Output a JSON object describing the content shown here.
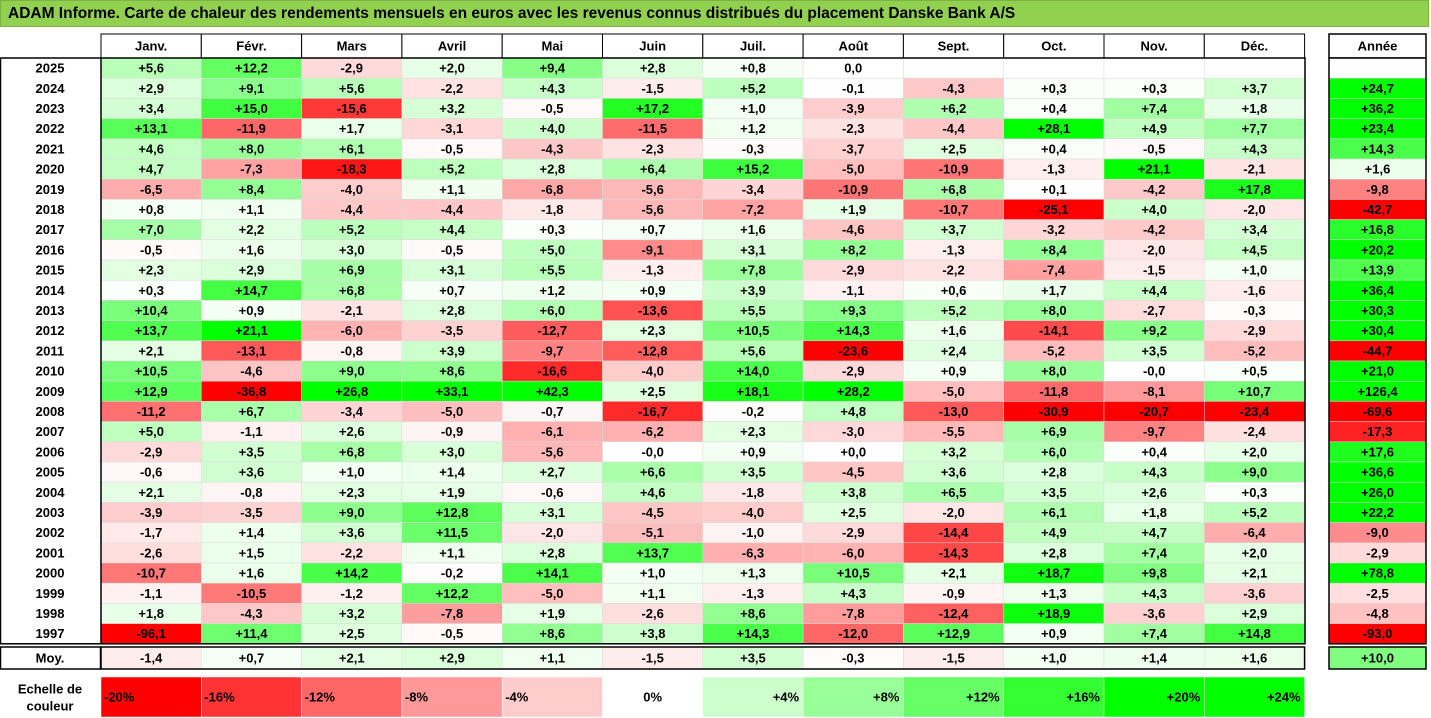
{
  "title": "ADAM Informe. Carte de chaleur des rendements mensuels en euros avec les revenus connus distribués du placement Danske Bank A/S",
  "chart_data": {
    "type": "heatmap",
    "title": "ADAM Informe. Carte de chaleur des rendements mensuels en euros avec les revenus connus distribués du placement Danske Bank A/S",
    "months": [
      "Janv.",
      "Févr.",
      "Mars",
      "Avril",
      "Mai",
      "Juin",
      "Juil.",
      "Août",
      "Sept.",
      "Oct.",
      "Nov.",
      "Déc."
    ],
    "year_header": "Année",
    "rows": [
      {
        "year": "2025",
        "values": [
          "+5,6",
          "+12,2",
          "-2,9",
          "+2,0",
          "+9,4",
          "+2,8",
          "+0,8",
          "0,0",
          "",
          "",
          "",
          ""
        ],
        "annual": ""
      },
      {
        "year": "2024",
        "values": [
          "+2,9",
          "+9,1",
          "+5,6",
          "-2,2",
          "+4,3",
          "-1,5",
          "+5,2",
          "-0,1",
          "-4,3",
          "+0,3",
          "+0,3",
          "+3,7"
        ],
        "annual": "+24,7"
      },
      {
        "year": "2023",
        "values": [
          "+3,4",
          "+15,0",
          "-15,6",
          "+3,2",
          "-0,5",
          "+17,2",
          "+1,0",
          "-3,9",
          "+6,2",
          "+0,4",
          "+7,4",
          "+1,8"
        ],
        "annual": "+36,2"
      },
      {
        "year": "2022",
        "values": [
          "+13,1",
          "-11,9",
          "+1,7",
          "-3,1",
          "+4,0",
          "-11,5",
          "+1,2",
          "-2,3",
          "-4,4",
          "+28,1",
          "+4,9",
          "+7,7"
        ],
        "annual": "+23,4"
      },
      {
        "year": "2021",
        "values": [
          "+4,6",
          "+8,0",
          "+6,1",
          "-0,5",
          "-4,3",
          "-2,3",
          "-0,3",
          "-3,7",
          "+2,5",
          "+0,4",
          "-0,5",
          "+4,3"
        ],
        "annual": "+14,3"
      },
      {
        "year": "2020",
        "values": [
          "+4,7",
          "-7,3",
          "-18,3",
          "+5,2",
          "+2,8",
          "+6,4",
          "+15,2",
          "-5,0",
          "-10,9",
          "-1,3",
          "+21,1",
          "-2,1"
        ],
        "annual": "+1,6"
      },
      {
        "year": "2019",
        "values": [
          "-6,5",
          "+8,4",
          "-4,0",
          "+1,1",
          "-6,8",
          "-5,6",
          "-3,4",
          "-10,9",
          "+6,8",
          "+0,1",
          "-4,2",
          "+17,8"
        ],
        "annual": "-9,8"
      },
      {
        "year": "2018",
        "values": [
          "+0,8",
          "+1,1",
          "-4,4",
          "-4,4",
          "-1,8",
          "-5,6",
          "-7,2",
          "+1,9",
          "-10,7",
          "-25,1",
          "+4,0",
          "-2,0"
        ],
        "annual": "-42,7"
      },
      {
        "year": "2017",
        "values": [
          "+7,0",
          "+2,2",
          "+5,2",
          "+4,4",
          "+0,3",
          "+0,7",
          "+1,6",
          "-4,6",
          "+3,7",
          "-3,2",
          "-4,2",
          "+3,4"
        ],
        "annual": "+16,8"
      },
      {
        "year": "2016",
        "values": [
          "-0,5",
          "+1,6",
          "+3,0",
          "-0,5",
          "+5,0",
          "-9,1",
          "+3,1",
          "+8,2",
          "-1,3",
          "+8,4",
          "-2,0",
          "+4,5"
        ],
        "annual": "+20,2"
      },
      {
        "year": "2015",
        "values": [
          "+2,3",
          "+2,9",
          "+6,9",
          "+3,1",
          "+5,5",
          "-1,3",
          "+7,8",
          "-2,9",
          "-2,2",
          "-7,4",
          "-1,5",
          "+1,0"
        ],
        "annual": "+13,9"
      },
      {
        "year": "2014",
        "values": [
          "+0,3",
          "+14,7",
          "+6,8",
          "+0,7",
          "+1,2",
          "+0,9",
          "+3,9",
          "-1,1",
          "+0,6",
          "+1,7",
          "+4,4",
          "-1,6"
        ],
        "annual": "+36,4"
      },
      {
        "year": "2013",
        "values": [
          "+10,4",
          "+0,9",
          "-2,1",
          "+2,8",
          "+6,0",
          "-13,6",
          "+5,5",
          "+9,3",
          "+5,2",
          "+8,0",
          "-2,7",
          "-0,3"
        ],
        "annual": "+30,3"
      },
      {
        "year": "2012",
        "values": [
          "+13,7",
          "+21,1",
          "-6,0",
          "-3,5",
          "-12,7",
          "+2,3",
          "+10,5",
          "+14,3",
          "+1,6",
          "-14,1",
          "+9,2",
          "-2,9"
        ],
        "annual": "+30,4"
      },
      {
        "year": "2011",
        "values": [
          "+2,1",
          "-13,1",
          "-0,8",
          "+3,9",
          "-9,7",
          "-12,8",
          "+5,6",
          "-23,6",
          "+2,4",
          "-5,2",
          "+3,5",
          "-5,2"
        ],
        "annual": "-44,7"
      },
      {
        "year": "2010",
        "values": [
          "+10,5",
          "-4,6",
          "+9,0",
          "+8,6",
          "-16,6",
          "-4,0",
          "+14,0",
          "-2,9",
          "+0,9",
          "+8,0",
          "-0,0",
          "+0,5"
        ],
        "annual": "+21,0"
      },
      {
        "year": "2009",
        "values": [
          "+12,9",
          "-36,8",
          "+26,8",
          "+33,1",
          "+42,3",
          "+2,5",
          "+18,1",
          "+28,2",
          "-5,0",
          "-11,8",
          "-8,1",
          "+10,7"
        ],
        "annual": "+126,4"
      },
      {
        "year": "2008",
        "values": [
          "-11,2",
          "+6,7",
          "-3,4",
          "-5,0",
          "-0,7",
          "-16,7",
          "-0,2",
          "+4,8",
          "-13,0",
          "-30,9",
          "-20,7",
          "-23,4"
        ],
        "annual": "-69,6"
      },
      {
        "year": "2007",
        "values": [
          "+5,0",
          "-1,1",
          "+2,6",
          "-0,9",
          "-6,1",
          "-6,2",
          "+2,3",
          "-3,0",
          "-5,5",
          "+6,9",
          "-9,7",
          "-2,4"
        ],
        "annual": "-17,3"
      },
      {
        "year": "2006",
        "values": [
          "-2,9",
          "+3,5",
          "+6,8",
          "+3,0",
          "-5,6",
          "-0,0",
          "+0,9",
          "+0,0",
          "+3,2",
          "+6,0",
          "+0,4",
          "+2,0"
        ],
        "annual": "+17,6"
      },
      {
        "year": "2005",
        "values": [
          "-0,6",
          "+3,6",
          "+1,0",
          "+1,4",
          "+2,7",
          "+6,6",
          "+3,5",
          "-4,5",
          "+3,6",
          "+2,8",
          "+4,3",
          "+9,0"
        ],
        "annual": "+36,6"
      },
      {
        "year": "2004",
        "values": [
          "+2,1",
          "-0,8",
          "+2,3",
          "+1,9",
          "-0,6",
          "+4,6",
          "-1,8",
          "+3,8",
          "+6,5",
          "+3,5",
          "+2,6",
          "+0,3"
        ],
        "annual": "+26,0"
      },
      {
        "year": "2003",
        "values": [
          "-3,9",
          "-3,5",
          "+9,0",
          "+12,8",
          "+3,1",
          "-4,5",
          "-4,0",
          "+2,5",
          "-2,0",
          "+6,1",
          "+1,8",
          "+5,2"
        ],
        "annual": "+22,2"
      },
      {
        "year": "2002",
        "values": [
          "-1,7",
          "+1,4",
          "+3,6",
          "+11,5",
          "-2,0",
          "-5,1",
          "-1,0",
          "-2,9",
          "-14,4",
          "+4,9",
          "+4,7",
          "-6,4"
        ],
        "annual": "-9,0"
      },
      {
        "year": "2001",
        "values": [
          "-2,6",
          "+1,5",
          "-2,2",
          "+1,1",
          "+2,8",
          "+13,7",
          "-6,3",
          "-6,0",
          "-14,3",
          "+2,8",
          "+7,4",
          "+2,0"
        ],
        "annual": "-2,9"
      },
      {
        "year": "2000",
        "values": [
          "-10,7",
          "+1,6",
          "+14,2",
          "-0,2",
          "+14,1",
          "+1,0",
          "+1,3",
          "+10,5",
          "+2,1",
          "+18,7",
          "+9,8",
          "+2,1"
        ],
        "annual": "+78,8"
      },
      {
        "year": "1999",
        "values": [
          "-1,1",
          "-10,5",
          "-1,2",
          "+12,2",
          "-5,0",
          "+1,1",
          "-1,3",
          "+4,3",
          "-0,9",
          "+1,3",
          "+4,3",
          "-3,6"
        ],
        "annual": "-2,5"
      },
      {
        "year": "1998",
        "values": [
          "+1,8",
          "-4,3",
          "+3,2",
          "-7,8",
          "+1,9",
          "-2,6",
          "+8,6",
          "-7,8",
          "-12,4",
          "+18,9",
          "-3,6",
          "+2,9"
        ],
        "annual": "-4,8"
      },
      {
        "year": "1997",
        "values": [
          "-96,1",
          "+11,4",
          "+2,5",
          "-0,5",
          "+8,6",
          "+3,8",
          "+14,3",
          "-12,0",
          "+12,9",
          "+0,9",
          "+7,4",
          "+14,8"
        ],
        "annual": "-93,0"
      }
    ],
    "average": {
      "label": "Moy.",
      "values": [
        "-1,4",
        "+0,7",
        "+2,1",
        "+2,9",
        "+1,1",
        "-1,5",
        "+3,5",
        "-0,3",
        "-1,5",
        "+1,0",
        "+1,4",
        "+1,6"
      ],
      "annual": "+10,0"
    },
    "legend": {
      "label_line1": "Echelle de",
      "label_line2": "couleur",
      "stops": [
        "-20%",
        "-16%",
        "-12%",
        "-8%",
        "-4%",
        "0%",
        "+4%",
        "+8%",
        "+12%",
        "+16%",
        "+20%",
        "+24%"
      ],
      "stop_values": [
        -20,
        -16,
        -12,
        -8,
        -4,
        0,
        4,
        8,
        12,
        16,
        20,
        24
      ]
    },
    "colors": {
      "neg_max": "#ff0000",
      "neutral": "#ffffff",
      "pos_max": "#00ff00",
      "title_bg": "#92d050"
    }
  }
}
